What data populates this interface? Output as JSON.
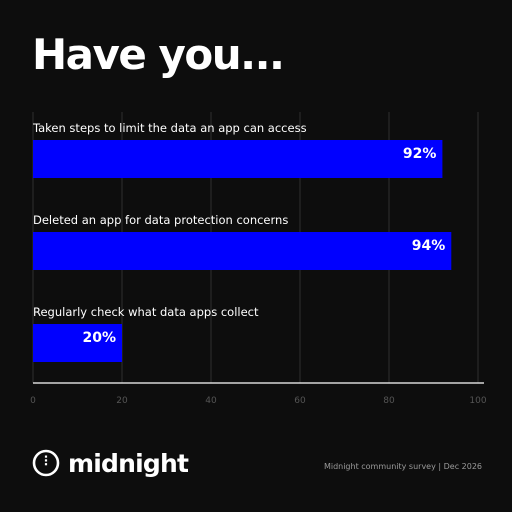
{
  "title": "Have you...",
  "chart_data": {
    "type": "bar",
    "orientation": "horizontal",
    "categories": [
      "Taken steps to limit the data an app can access",
      "Deleted an app for data protection concerns",
      "Regularly check what data apps collect"
    ],
    "values": [
      92,
      94,
      20
    ],
    "value_labels": [
      "92%",
      "94%",
      "20%"
    ],
    "xlim": [
      0,
      100
    ],
    "xticks": [
      "0",
      "20",
      "40",
      "60",
      "80",
      "100"
    ],
    "grid": true,
    "bar_color": "#0000ff"
  },
  "logo": {
    "text": "midnight",
    "icon": "midnight-logo-icon"
  },
  "source": "Midnight community survey | Dec 2026",
  "colors": {
    "background": "#0d0d0d",
    "bar": "#0000ff",
    "grid": "#2e2e2e",
    "text": "#ffffff"
  }
}
